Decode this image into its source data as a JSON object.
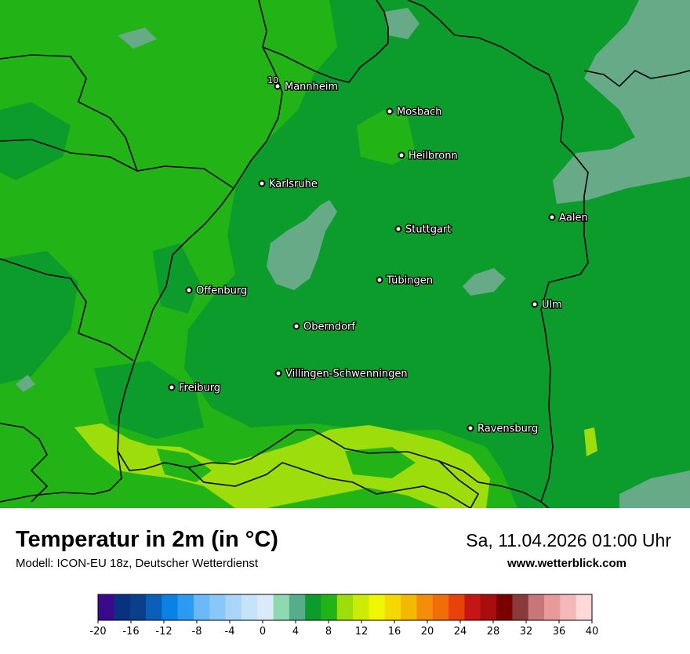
{
  "header": {
    "title": "Temperatur in 2m (in °C)",
    "model": "Modell: ICON-EU 18z, Deutscher Wetterdienst",
    "datetime": "Sa, 11.04.2026 01:00 Uhr",
    "website": "www.wetterblick.com"
  },
  "map": {
    "colors": {
      "band_4_6": "#66aa88",
      "band_6_8": "#55ad8b",
      "band_8_10": "#0c9c2c",
      "band_10_12": "#22b417",
      "band_12_14": "#9ddd0b",
      "border": "#000000"
    },
    "isoline_label": "10",
    "cities": [
      {
        "name": "Mannheim",
        "icon": "city-dot"
      },
      {
        "name": "Mosbach",
        "icon": "city-dot"
      },
      {
        "name": "Heilbronn",
        "icon": "city-dot"
      },
      {
        "name": "Karlsruhe",
        "icon": "city-dot"
      },
      {
        "name": "Aalen",
        "icon": "city-dot"
      },
      {
        "name": "Stuttgart",
        "icon": "city-dot"
      },
      {
        "name": "Tübingen",
        "icon": "city-dot"
      },
      {
        "name": "Offenburg",
        "icon": "city-dot"
      },
      {
        "name": "Ulm",
        "icon": "city-dot"
      },
      {
        "name": "Oberndorf",
        "icon": "city-dot"
      },
      {
        "name": "Villingen-Schwenningen",
        "icon": "city-dot"
      },
      {
        "name": "Freiburg",
        "icon": "city-dot"
      },
      {
        "name": "Ravensburg",
        "icon": "city-dot"
      }
    ]
  },
  "legend": {
    "ticks": [
      "-20",
      "-16",
      "-12",
      "-8",
      "-4",
      "0",
      "4",
      "8",
      "12",
      "16",
      "20",
      "24",
      "28",
      "32",
      "36",
      "40"
    ],
    "colors": [
      "#3a0a8c",
      "#0a3080",
      "#0a3f8a",
      "#0a5fbb",
      "#0a82e5",
      "#2a9af5",
      "#6ab8f5",
      "#88c7f7",
      "#a9d6f8",
      "#c5e3f9",
      "#d9ebfa",
      "#8fd9b0",
      "#55ad8b",
      "#0c9c2c",
      "#22b417",
      "#9ddd0b",
      "#ccec05",
      "#f0f500",
      "#f5d800",
      "#f5b800",
      "#f58c0a",
      "#f06e0a",
      "#e8420a",
      "#c71414",
      "#a80e0e",
      "#7a0000",
      "#8a3a3a",
      "#c77777",
      "#e89a9a",
      "#f5b8b8",
      "#ffd9d9"
    ]
  }
}
